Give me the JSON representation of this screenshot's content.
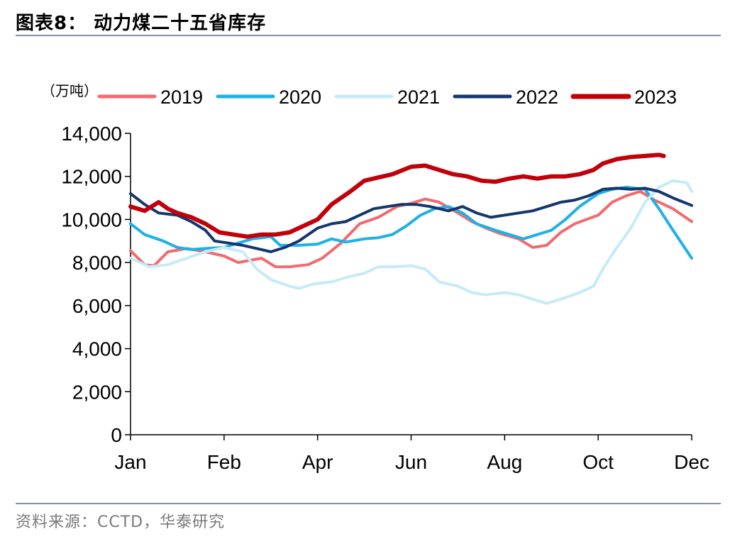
{
  "header": {
    "title": "图表8：  动力煤二十五省库存"
  },
  "footer": {
    "source": "资料来源：CCTD，华泰研究"
  },
  "chart_data": {
    "type": "line",
    "unit_label": "（万吨）",
    "ylim": [
      0,
      14000
    ],
    "yticks": [
      "0",
      "2,000",
      "4,000",
      "6,000",
      "8,000",
      "10,000",
      "12,000",
      "14,000"
    ],
    "xlim": [
      0,
      12
    ],
    "xticks": [
      {
        "label": "Jan",
        "x": 0
      },
      {
        "label": "Feb",
        "x": 2
      },
      {
        "label": "Apr",
        "x": 4
      },
      {
        "label": "Jun",
        "x": 6
      },
      {
        "label": "Aug",
        "x": 8
      },
      {
        "label": "Oct",
        "x": 10
      },
      {
        "label": "Dec",
        "x": 12
      }
    ],
    "grid": false,
    "legend": "top",
    "series": [
      {
        "name": "2019",
        "color": "#f26a6e",
        "width": 4,
        "points": [
          [
            0,
            8550
          ],
          [
            0.3,
            7900
          ],
          [
            0.5,
            7850
          ],
          [
            0.8,
            8500
          ],
          [
            1.2,
            8650
          ],
          [
            1.6,
            8500
          ],
          [
            2.0,
            8300
          ],
          [
            2.3,
            8000
          ],
          [
            2.8,
            8200
          ],
          [
            3.1,
            7800
          ],
          [
            3.4,
            7800
          ],
          [
            3.8,
            7900
          ],
          [
            4.1,
            8200
          ],
          [
            4.5,
            8900
          ],
          [
            4.9,
            9800
          ],
          [
            5.3,
            10100
          ],
          [
            5.7,
            10600
          ],
          [
            6.0,
            10750
          ],
          [
            6.3,
            10950
          ],
          [
            6.6,
            10800
          ],
          [
            7.0,
            10300
          ],
          [
            7.3,
            9900
          ],
          [
            7.6,
            9600
          ],
          [
            7.9,
            9350
          ],
          [
            8.3,
            9100
          ],
          [
            8.6,
            8700
          ],
          [
            8.9,
            8800
          ],
          [
            9.2,
            9400
          ],
          [
            9.5,
            9800
          ],
          [
            10.0,
            10200
          ],
          [
            10.3,
            10800
          ],
          [
            10.6,
            11100
          ],
          [
            10.9,
            11300
          ],
          [
            11.2,
            10900
          ],
          [
            11.6,
            10500
          ],
          [
            12.0,
            9900
          ]
        ]
      },
      {
        "name": "2020",
        "color": "#1eb0e6",
        "width": 4,
        "points": [
          [
            0,
            9800
          ],
          [
            0.3,
            9300
          ],
          [
            0.7,
            9000
          ],
          [
            1.0,
            8700
          ],
          [
            1.3,
            8600
          ],
          [
            1.6,
            8650
          ],
          [
            2.0,
            8700
          ],
          [
            2.3,
            8900
          ],
          [
            2.6,
            9100
          ],
          [
            3.0,
            9200
          ],
          [
            3.2,
            8800
          ],
          [
            3.6,
            8800
          ],
          [
            4.0,
            8850
          ],
          [
            4.3,
            9100
          ],
          [
            4.6,
            8950
          ],
          [
            5.0,
            9100
          ],
          [
            5.3,
            9150
          ],
          [
            5.6,
            9300
          ],
          [
            5.9,
            9700
          ],
          [
            6.2,
            10200
          ],
          [
            6.5,
            10500
          ],
          [
            6.8,
            10600
          ],
          [
            7.1,
            10300
          ],
          [
            7.4,
            9800
          ],
          [
            7.8,
            9500
          ],
          [
            8.1,
            9300
          ],
          [
            8.4,
            9100
          ],
          [
            8.7,
            9300
          ],
          [
            9.0,
            9500
          ],
          [
            9.3,
            10000
          ],
          [
            9.6,
            10600
          ],
          [
            10.0,
            11200
          ],
          [
            10.3,
            11400
          ],
          [
            10.6,
            11500
          ],
          [
            11.0,
            11400
          ],
          [
            11.3,
            10500
          ],
          [
            11.6,
            9500
          ],
          [
            12.0,
            8200
          ]
        ]
      },
      {
        "name": "2021",
        "color": "#c5ebf7",
        "width": 4,
        "points": [
          [
            0,
            8200
          ],
          [
            0.4,
            7800
          ],
          [
            0.8,
            7900
          ],
          [
            1.2,
            8200
          ],
          [
            1.6,
            8500
          ],
          [
            2.0,
            8700
          ],
          [
            2.4,
            8500
          ],
          [
            2.7,
            7700
          ],
          [
            3.0,
            7200
          ],
          [
            3.4,
            6900
          ],
          [
            3.6,
            6800
          ],
          [
            3.9,
            7000
          ],
          [
            4.3,
            7100
          ],
          [
            4.6,
            7300
          ],
          [
            5.0,
            7500
          ],
          [
            5.3,
            7800
          ],
          [
            5.6,
            7800
          ],
          [
            6.0,
            7850
          ],
          [
            6.3,
            7700
          ],
          [
            6.6,
            7100
          ],
          [
            7.0,
            6900
          ],
          [
            7.3,
            6600
          ],
          [
            7.6,
            6500
          ],
          [
            8.0,
            6600
          ],
          [
            8.3,
            6500
          ],
          [
            8.6,
            6300
          ],
          [
            8.9,
            6100
          ],
          [
            9.2,
            6300
          ],
          [
            9.6,
            6600
          ],
          [
            9.9,
            6900
          ],
          [
            10.1,
            7700
          ],
          [
            10.4,
            8700
          ],
          [
            10.7,
            9600
          ],
          [
            11.0,
            10800
          ],
          [
            11.3,
            11500
          ],
          [
            11.6,
            11800
          ],
          [
            11.9,
            11700
          ],
          [
            12.0,
            11300
          ]
        ]
      },
      {
        "name": "2022",
        "color": "#12366e",
        "width": 4,
        "points": [
          [
            0,
            11200
          ],
          [
            0.3,
            10700
          ],
          [
            0.6,
            10300
          ],
          [
            1.0,
            10200
          ],
          [
            1.3,
            9900
          ],
          [
            1.6,
            9500
          ],
          [
            1.8,
            9000
          ],
          [
            2.1,
            8900
          ],
          [
            2.4,
            8800
          ],
          [
            2.8,
            8600
          ],
          [
            3.0,
            8500
          ],
          [
            3.3,
            8700
          ],
          [
            3.6,
            9000
          ],
          [
            4.0,
            9600
          ],
          [
            4.3,
            9800
          ],
          [
            4.6,
            9900
          ],
          [
            4.9,
            10200
          ],
          [
            5.2,
            10500
          ],
          [
            5.5,
            10600
          ],
          [
            5.8,
            10700
          ],
          [
            6.1,
            10700
          ],
          [
            6.4,
            10600
          ],
          [
            6.8,
            10400
          ],
          [
            7.1,
            10600
          ],
          [
            7.4,
            10300
          ],
          [
            7.7,
            10100
          ],
          [
            8.0,
            10200
          ],
          [
            8.3,
            10300
          ],
          [
            8.6,
            10400
          ],
          [
            8.9,
            10600
          ],
          [
            9.2,
            10800
          ],
          [
            9.5,
            10900
          ],
          [
            9.8,
            11100
          ],
          [
            10.1,
            11400
          ],
          [
            10.4,
            11450
          ],
          [
            10.7,
            11400
          ],
          [
            11.0,
            11450
          ],
          [
            11.3,
            11300
          ],
          [
            11.6,
            11000
          ],
          [
            12.0,
            10650
          ]
        ]
      },
      {
        "name": "2023",
        "color": "#c0000b",
        "width": 6,
        "points": [
          [
            0,
            10600
          ],
          [
            0.3,
            10400
          ],
          [
            0.6,
            10800
          ],
          [
            0.8,
            10500
          ],
          [
            1.0,
            10300
          ],
          [
            1.3,
            10100
          ],
          [
            1.6,
            9800
          ],
          [
            1.9,
            9400
          ],
          [
            2.2,
            9300
          ],
          [
            2.5,
            9200
          ],
          [
            2.8,
            9300
          ],
          [
            3.1,
            9300
          ],
          [
            3.4,
            9400
          ],
          [
            3.7,
            9700
          ],
          [
            4.0,
            10000
          ],
          [
            4.3,
            10700
          ],
          [
            4.7,
            11300
          ],
          [
            5.0,
            11800
          ],
          [
            5.3,
            11950
          ],
          [
            5.6,
            12100
          ],
          [
            6.0,
            12450
          ],
          [
            6.3,
            12500
          ],
          [
            6.6,
            12300
          ],
          [
            6.9,
            12100
          ],
          [
            7.2,
            12000
          ],
          [
            7.5,
            11800
          ],
          [
            7.8,
            11750
          ],
          [
            8.1,
            11900
          ],
          [
            8.4,
            12000
          ],
          [
            8.7,
            11900
          ],
          [
            9.0,
            12000
          ],
          [
            9.3,
            12000
          ],
          [
            9.6,
            12100
          ],
          [
            9.9,
            12300
          ],
          [
            10.1,
            12600
          ],
          [
            10.4,
            12800
          ],
          [
            10.7,
            12900
          ],
          [
            11.0,
            12950
          ],
          [
            11.3,
            13000
          ],
          [
            11.4,
            12950
          ]
        ]
      }
    ]
  }
}
